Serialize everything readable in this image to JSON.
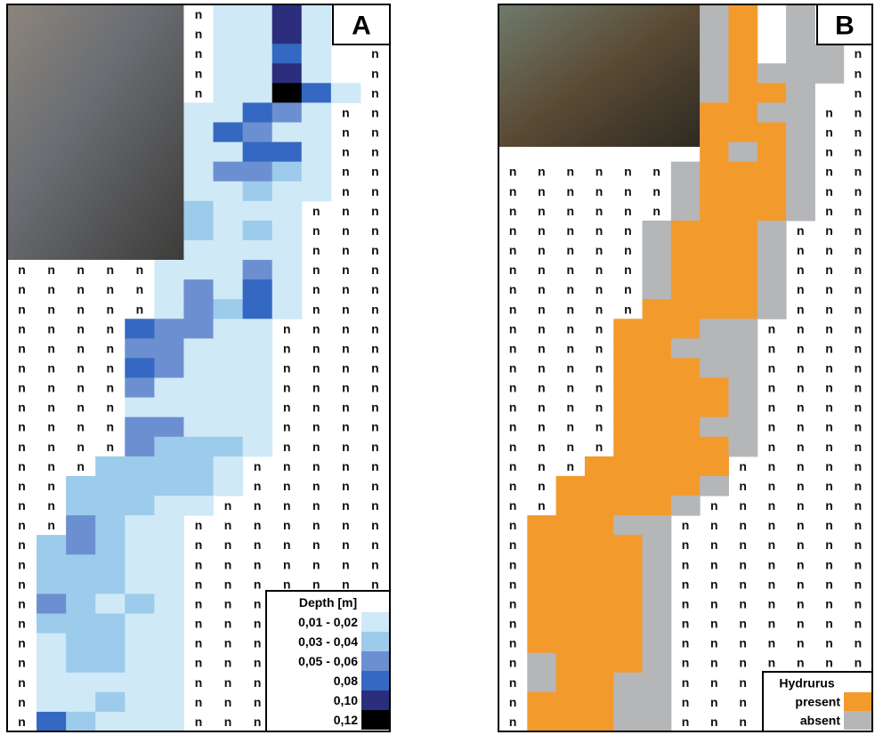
{
  "panels": [
    {
      "letter": "A",
      "legend": {
        "title": "Depth [m]",
        "items": [
          {
            "label": "0,01 - 0,02",
            "color": "#cfe9f6"
          },
          {
            "label": "0,03 - 0,04",
            "color": "#9ccbeb"
          },
          {
            "label": "0,05 - 0,06",
            "color": "#6c8fd1"
          },
          {
            "label": "0,08",
            "color": "#3468c2"
          },
          {
            "label": "0,10",
            "color": "#2c2d7c"
          },
          {
            "label": "0,12",
            "color": "#000000"
          }
        ]
      },
      "grid": [
        [
          null,
          null,
          null,
          null,
          null,
          null,
          "n",
          0,
          0,
          4,
          0,
          null,
          null
        ],
        [
          null,
          null,
          null,
          null,
          null,
          null,
          "n",
          0,
          0,
          4,
          0,
          null,
          null
        ],
        [
          null,
          null,
          null,
          null,
          null,
          null,
          "n",
          0,
          0,
          3,
          0,
          null,
          "n"
        ],
        [
          null,
          null,
          null,
          null,
          null,
          null,
          "n",
          0,
          0,
          4,
          0,
          null,
          "n"
        ],
        [
          null,
          null,
          null,
          null,
          null,
          null,
          "n",
          0,
          0,
          5,
          3,
          0,
          "n"
        ],
        [
          null,
          null,
          null,
          null,
          null,
          null,
          0,
          0,
          3,
          2,
          0,
          "n",
          "n"
        ],
        [
          null,
          null,
          null,
          null,
          null,
          null,
          0,
          3,
          2,
          0,
          0,
          "n",
          "n"
        ],
        [
          null,
          null,
          null,
          null,
          null,
          null,
          0,
          0,
          3,
          3,
          0,
          "n",
          "n"
        ],
        [
          null,
          null,
          null,
          null,
          null,
          null,
          0,
          2,
          2,
          1,
          0,
          "n",
          "n"
        ],
        [
          null,
          null,
          null,
          null,
          null,
          null,
          0,
          0,
          1,
          0,
          0,
          "n",
          "n"
        ],
        [
          null,
          null,
          null,
          null,
          null,
          null,
          1,
          0,
          0,
          0,
          "n",
          "n",
          "n"
        ],
        [
          null,
          null,
          null,
          null,
          null,
          null,
          1,
          0,
          1,
          0,
          "n",
          "n",
          "n"
        ],
        [
          null,
          null,
          null,
          null,
          null,
          null,
          0,
          0,
          0,
          0,
          "n",
          "n",
          "n"
        ],
        [
          "n",
          "n",
          "n",
          "n",
          "n",
          0,
          0,
          0,
          2,
          0,
          "n",
          "n",
          "n"
        ],
        [
          "n",
          "n",
          "n",
          "n",
          "n",
          0,
          2,
          0,
          3,
          0,
          "n",
          "n",
          "n"
        ],
        [
          "n",
          "n",
          "n",
          "n",
          "n",
          0,
          2,
          1,
          3,
          0,
          "n",
          "n",
          "n"
        ],
        [
          "n",
          "n",
          "n",
          "n",
          3,
          2,
          2,
          0,
          0,
          "n",
          "n",
          "n",
          "n"
        ],
        [
          "n",
          "n",
          "n",
          "n",
          2,
          2,
          0,
          0,
          0,
          "n",
          "n",
          "n",
          "n"
        ],
        [
          "n",
          "n",
          "n",
          "n",
          3,
          2,
          0,
          0,
          0,
          "n",
          "n",
          "n",
          "n"
        ],
        [
          "n",
          "n",
          "n",
          "n",
          2,
          0,
          0,
          0,
          0,
          "n",
          "n",
          "n",
          "n"
        ],
        [
          "n",
          "n",
          "n",
          "n",
          0,
          0,
          0,
          0,
          0,
          "n",
          "n",
          "n",
          "n"
        ],
        [
          "n",
          "n",
          "n",
          "n",
          2,
          2,
          0,
          0,
          0,
          "n",
          "n",
          "n",
          "n"
        ],
        [
          "n",
          "n",
          "n",
          "n",
          2,
          1,
          1,
          1,
          0,
          "n",
          "n",
          "n",
          "n"
        ],
        [
          "n",
          "n",
          "n",
          1,
          1,
          1,
          1,
          0,
          "n",
          "n",
          "n",
          "n",
          "n"
        ],
        [
          "n",
          "n",
          1,
          1,
          1,
          1,
          1,
          0,
          "n",
          "n",
          "n",
          "n",
          "n"
        ],
        [
          "n",
          "n",
          1,
          1,
          1,
          0,
          0,
          "n",
          "n",
          "n",
          "n",
          "n",
          "n"
        ],
        [
          "n",
          "n",
          2,
          1,
          0,
          0,
          "n",
          "n",
          "n",
          "n",
          "n",
          "n",
          "n"
        ],
        [
          "n",
          1,
          2,
          1,
          0,
          0,
          "n",
          "n",
          "n",
          "n",
          "n",
          "n",
          "n"
        ],
        [
          "n",
          1,
          1,
          1,
          0,
          0,
          "n",
          "n",
          "n",
          "n",
          "n",
          "n",
          "n"
        ],
        [
          "n",
          1,
          1,
          1,
          0,
          0,
          "n",
          "n",
          "n",
          "n",
          "n",
          "n",
          "n"
        ],
        [
          "n",
          2,
          1,
          0,
          1,
          0,
          "n",
          "n",
          "n",
          null,
          null,
          null,
          null
        ],
        [
          "n",
          1,
          1,
          1,
          0,
          0,
          "n",
          "n",
          "n",
          null,
          null,
          null,
          null
        ],
        [
          "n",
          0,
          1,
          1,
          0,
          0,
          "n",
          "n",
          "n",
          null,
          null,
          null,
          null
        ],
        [
          "n",
          0,
          1,
          1,
          0,
          0,
          "n",
          "n",
          "n",
          null,
          null,
          null,
          null
        ],
        [
          "n",
          0,
          0,
          0,
          0,
          0,
          "n",
          "n",
          "n",
          null,
          null,
          null,
          null
        ],
        [
          "n",
          0,
          0,
          1,
          0,
          0,
          "n",
          "n",
          "n",
          null,
          null,
          null,
          null
        ],
        [
          "n",
          3,
          1,
          0,
          0,
          0,
          "n",
          "n",
          "n",
          null,
          null,
          null,
          null
        ]
      ]
    },
    {
      "letter": "B",
      "legend": {
        "title": "Hydrurus",
        "items": [
          {
            "label": "present",
            "color": "#f39a2d"
          },
          {
            "label": "absent",
            "color": "#b5b6b8"
          }
        ]
      },
      "grid": [
        [
          null,
          null,
          null,
          null,
          null,
          null,
          null,
          1,
          0,
          null,
          1,
          null,
          null
        ],
        [
          null,
          null,
          null,
          null,
          null,
          null,
          null,
          1,
          0,
          null,
          1,
          null,
          null
        ],
        [
          null,
          null,
          null,
          null,
          null,
          null,
          null,
          1,
          0,
          null,
          1,
          1,
          "n"
        ],
        [
          null,
          null,
          null,
          null,
          null,
          null,
          null,
          1,
          0,
          1,
          1,
          1,
          "n"
        ],
        [
          null,
          null,
          null,
          null,
          null,
          null,
          null,
          1,
          0,
          0,
          1,
          null,
          "n"
        ],
        [
          null,
          null,
          null,
          null,
          null,
          null,
          null,
          0,
          0,
          1,
          1,
          "n",
          "n"
        ],
        [
          null,
          null,
          null,
          null,
          null,
          null,
          null,
          0,
          0,
          0,
          1,
          "n",
          "n"
        ],
        [
          null,
          null,
          null,
          null,
          null,
          null,
          null,
          0,
          1,
          0,
          1,
          "n",
          "n"
        ],
        [
          "n",
          "n",
          "n",
          "n",
          "n",
          "n",
          1,
          0,
          0,
          0,
          1,
          "n",
          "n"
        ],
        [
          "n",
          "n",
          "n",
          "n",
          "n",
          "n",
          1,
          0,
          0,
          0,
          1,
          "n",
          "n"
        ],
        [
          "n",
          "n",
          "n",
          "n",
          "n",
          "n",
          1,
          0,
          0,
          0,
          1,
          "n",
          "n"
        ],
        [
          "n",
          "n",
          "n",
          "n",
          "n",
          1,
          0,
          0,
          0,
          1,
          "n",
          "n",
          "n"
        ],
        [
          "n",
          "n",
          "n",
          "n",
          "n",
          1,
          0,
          0,
          0,
          1,
          "n",
          "n",
          "n"
        ],
        [
          "n",
          "n",
          "n",
          "n",
          "n",
          1,
          0,
          0,
          0,
          1,
          "n",
          "n",
          "n"
        ],
        [
          "n",
          "n",
          "n",
          "n",
          "n",
          1,
          0,
          0,
          0,
          1,
          "n",
          "n",
          "n"
        ],
        [
          "n",
          "n",
          "n",
          "n",
          "n",
          0,
          0,
          0,
          0,
          1,
          "n",
          "n",
          "n"
        ],
        [
          "n",
          "n",
          "n",
          "n",
          0,
          0,
          0,
          1,
          1,
          "n",
          "n",
          "n",
          "n"
        ],
        [
          "n",
          "n",
          "n",
          "n",
          0,
          0,
          1,
          1,
          1,
          "n",
          "n",
          "n",
          "n"
        ],
        [
          "n",
          "n",
          "n",
          "n",
          0,
          0,
          0,
          1,
          1,
          "n",
          "n",
          "n",
          "n"
        ],
        [
          "n",
          "n",
          "n",
          "n",
          0,
          0,
          0,
          0,
          1,
          "n",
          "n",
          "n",
          "n"
        ],
        [
          "n",
          "n",
          "n",
          "n",
          0,
          0,
          0,
          0,
          1,
          "n",
          "n",
          "n",
          "n"
        ],
        [
          "n",
          "n",
          "n",
          "n",
          0,
          0,
          0,
          1,
          1,
          "n",
          "n",
          "n",
          "n"
        ],
        [
          "n",
          "n",
          "n",
          "n",
          0,
          0,
          0,
          0,
          1,
          "n",
          "n",
          "n",
          "n"
        ],
        [
          "n",
          "n",
          "n",
          0,
          0,
          0,
          0,
          0,
          "n",
          "n",
          "n",
          "n",
          "n"
        ],
        [
          "n",
          "n",
          0,
          0,
          0,
          0,
          0,
          1,
          "n",
          "n",
          "n",
          "n",
          "n"
        ],
        [
          "n",
          "n",
          0,
          0,
          0,
          0,
          1,
          "n",
          "n",
          "n",
          "n",
          "n",
          "n"
        ],
        [
          "n",
          0,
          0,
          0,
          1,
          1,
          "n",
          "n",
          "n",
          "n",
          "n",
          "n",
          "n"
        ],
        [
          "n",
          0,
          0,
          0,
          0,
          1,
          "n",
          "n",
          "n",
          "n",
          "n",
          "n",
          "n"
        ],
        [
          "n",
          0,
          0,
          0,
          0,
          1,
          "n",
          "n",
          "n",
          "n",
          "n",
          "n",
          "n"
        ],
        [
          "n",
          0,
          0,
          0,
          0,
          1,
          "n",
          "n",
          "n",
          "n",
          "n",
          "n",
          "n"
        ],
        [
          "n",
          0,
          0,
          0,
          0,
          1,
          "n",
          "n",
          "n",
          "n",
          "n",
          "n",
          "n"
        ],
        [
          "n",
          0,
          0,
          0,
          0,
          1,
          "n",
          "n",
          "n",
          "n",
          "n",
          "n",
          "n"
        ],
        [
          "n",
          0,
          0,
          0,
          0,
          1,
          "n",
          "n",
          "n",
          "n",
          "n",
          "n",
          "n"
        ],
        [
          "n",
          1,
          0,
          0,
          0,
          1,
          "n",
          "n",
          "n",
          "n",
          "n",
          "n",
          "n"
        ],
        [
          "n",
          1,
          0,
          0,
          1,
          1,
          "n",
          "n",
          "n",
          null,
          null,
          null,
          null
        ],
        [
          "n",
          0,
          0,
          0,
          1,
          1,
          "n",
          "n",
          "n",
          null,
          null,
          null,
          null
        ],
        [
          "n",
          0,
          0,
          0,
          1,
          1,
          "n",
          "n",
          "n",
          null,
          null,
          null,
          null
        ]
      ]
    }
  ]
}
